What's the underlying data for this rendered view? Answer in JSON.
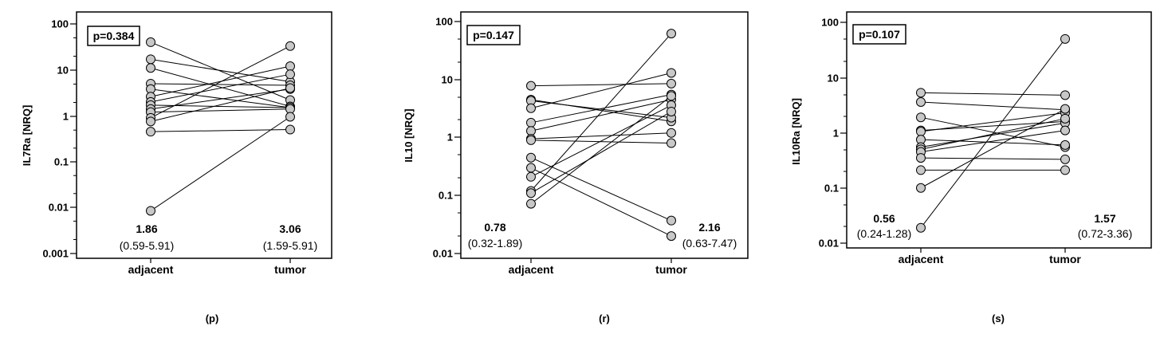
{
  "chart_data": [
    {
      "type": "scatter",
      "panel_label": "(p)",
      "ylabel": "IL7Ra  [NRQ]",
      "yscale": "log",
      "ylim": [
        0.001,
        100
      ],
      "yticks": [
        0.001,
        0.01,
        0.1,
        1,
        10,
        100
      ],
      "ytick_labels": [
        "0.001",
        "0.01",
        "0.1",
        "1",
        "10",
        "100"
      ],
      "categories": [
        "adjacent",
        "tumor"
      ],
      "p_value": "p=0.384",
      "medians": [
        {
          "value": "1.86",
          "range": "(0.59-5.91)"
        },
        {
          "value": "3.06",
          "range": "(1.59-5.91)"
        }
      ],
      "pairs": [
        [
          40,
          2.2
        ],
        [
          17,
          5.5
        ],
        [
          11,
          1.6
        ],
        [
          5,
          4.6
        ],
        [
          3.8,
          1.5
        ],
        [
          2.6,
          12
        ],
        [
          2.0,
          8.0
        ],
        [
          1.7,
          1.5
        ],
        [
          1.4,
          3.8
        ],
        [
          1.2,
          1.4
        ],
        [
          0.9,
          33
        ],
        [
          0.75,
          4.0
        ],
        [
          0.45,
          0.5
        ],
        [
          0.0085,
          0.95
        ]
      ]
    },
    {
      "type": "scatter",
      "panel_label": "(r)",
      "ylabel": "IL10  [NRQ]",
      "yscale": "log",
      "ylim": [
        0.01,
        100
      ],
      "yticks": [
        0.01,
        0.1,
        1,
        10,
        100
      ],
      "ytick_labels": [
        "0.01",
        "0.1",
        "1",
        "10",
        "100"
      ],
      "categories": [
        "adjacent",
        "tumor"
      ],
      "p_value": "p=0.147",
      "medians": [
        {
          "value": "0.78",
          "range": "(0.32-1.89)"
        },
        {
          "value": "2.16",
          "range": "(0.63-7.47)"
        }
      ],
      "pairs": [
        [
          7.8,
          8.5
        ],
        [
          4.5,
          1.9
        ],
        [
          4.3,
          2.2
        ],
        [
          3.2,
          13
        ],
        [
          1.8,
          5.5
        ],
        [
          1.3,
          4.5
        ],
        [
          0.95,
          1.2
        ],
        [
          0.9,
          0.8
        ],
        [
          0.45,
          0.037
        ],
        [
          0.3,
          0.02
        ],
        [
          0.21,
          3.6
        ],
        [
          0.12,
          62
        ],
        [
          0.11,
          2.8
        ],
        [
          0.072,
          5.2
        ]
      ]
    },
    {
      "type": "scatter",
      "panel_label": "(s)",
      "ylabel": "IL10Ra  [NRQ]",
      "yscale": "log",
      "ylim": [
        0.01,
        100
      ],
      "yticks": [
        0.01,
        0.1,
        1,
        10,
        100
      ],
      "ytick_labels": [
        "0.01",
        "0.1",
        "1",
        "10",
        "100"
      ],
      "categories": [
        "adjacent",
        "tumor"
      ],
      "p_value": "p=0.107",
      "medians": [
        {
          "value": "0.56",
          "range": "(0.24-1.28)"
        },
        {
          "value": "1.57",
          "range": "(0.72-3.36)"
        }
      ],
      "pairs": [
        [
          5.3,
          4.8
        ],
        [
          3.6,
          2.6
        ],
        [
          1.9,
          0.55
        ],
        [
          1.1,
          1.6
        ],
        [
          1.05,
          2.3
        ],
        [
          0.75,
          0.6
        ],
        [
          0.55,
          1.5
        ],
        [
          0.5,
          1.8
        ],
        [
          0.45,
          1.1
        ],
        [
          0.35,
          0.33
        ],
        [
          0.21,
          0.21
        ],
        [
          0.1,
          2.7
        ],
        [
          0.019,
          50
        ]
      ]
    }
  ]
}
